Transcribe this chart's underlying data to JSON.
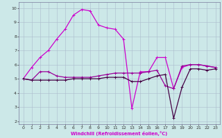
{
  "xlabel": "Windchill (Refroidissement éolien,°C)",
  "bg_color": "#cce8e8",
  "grid_color": "#aabbcc",
  "line_color1": "#cc00cc",
  "line_color2": "#990099",
  "line_color3": "#440044",
  "xlim": [
    -0.5,
    23.5
  ],
  "ylim": [
    1.8,
    10.4
  ],
  "yticks": [
    2,
    3,
    4,
    5,
    6,
    7,
    8,
    9,
    10
  ],
  "xticks": [
    0,
    1,
    2,
    3,
    4,
    5,
    6,
    7,
    8,
    9,
    10,
    11,
    12,
    13,
    14,
    15,
    16,
    17,
    18,
    19,
    20,
    21,
    22,
    23
  ],
  "series1_x": [
    0,
    1,
    2,
    3,
    4,
    5,
    6,
    7,
    8,
    9,
    10,
    11,
    12,
    13,
    14,
    15,
    16,
    17,
    18,
    19,
    20,
    21,
    22,
    23
  ],
  "series1_y": [
    5.0,
    5.8,
    6.5,
    7.0,
    7.8,
    8.5,
    9.5,
    9.9,
    9.8,
    8.8,
    8.6,
    8.5,
    7.8,
    2.9,
    5.5,
    5.5,
    6.5,
    6.5,
    4.3,
    5.8,
    6.0,
    6.0,
    5.9,
    5.8
  ],
  "series2_x": [
    0,
    1,
    2,
    3,
    4,
    5,
    6,
    7,
    8,
    9,
    10,
    11,
    12,
    13,
    14,
    15,
    16,
    17,
    18,
    19,
    20,
    21,
    22,
    23
  ],
  "series2_y": [
    5.0,
    4.9,
    5.5,
    5.5,
    5.2,
    5.1,
    5.1,
    5.1,
    5.1,
    5.2,
    5.3,
    5.4,
    5.4,
    5.4,
    5.4,
    5.5,
    5.6,
    4.5,
    4.3,
    5.9,
    6.0,
    6.0,
    5.9,
    5.8
  ],
  "series3_x": [
    0,
    1,
    2,
    3,
    4,
    5,
    6,
    7,
    8,
    9,
    10,
    11,
    12,
    13,
    14,
    15,
    16,
    17,
    18,
    19,
    20,
    21,
    22,
    23
  ],
  "series3_y": [
    5.0,
    4.9,
    4.9,
    4.9,
    4.9,
    4.9,
    5.0,
    5.0,
    5.0,
    5.0,
    5.1,
    5.1,
    5.1,
    4.8,
    4.8,
    5.0,
    5.2,
    5.3,
    2.2,
    4.4,
    5.7,
    5.7,
    5.6,
    5.7
  ]
}
